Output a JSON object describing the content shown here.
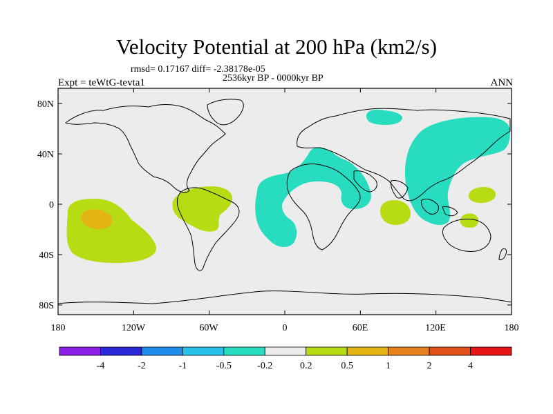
{
  "title": "Velocity Potential at 200 hPa (km2/s)",
  "stats": "rmsd= 0.17167  diff= -2.38178e-05",
  "period": "2536kyr BP - 0000kyr BP",
  "experiment": "Expt = teWtG-tevta1",
  "season": "ANN",
  "axes": {
    "lat_ticks": [
      "80N",
      "40N",
      "0",
      "40S",
      "80S"
    ],
    "lon_ticks": [
      "180",
      "120W",
      "60W",
      "0",
      "60E",
      "120E",
      "180"
    ]
  },
  "colorbar": {
    "colors": [
      "#8a1ee6",
      "#2828d6",
      "#1e8ce8",
      "#28c0e8",
      "#28dcc0",
      "#ececec",
      "#b8dc14",
      "#e2b414",
      "#e6821e",
      "#e05018",
      "#e61414"
    ],
    "labels": [
      "-4",
      "-2",
      "-1",
      "-0.5",
      "-0.2",
      "0.2",
      "0.5",
      "1",
      "2",
      "4"
    ]
  },
  "colors": {
    "background": "#ececec",
    "cyan_fill": "#28dcc0",
    "yellow_fill": "#b8dc14",
    "orange_fill": "#e2b414"
  }
}
